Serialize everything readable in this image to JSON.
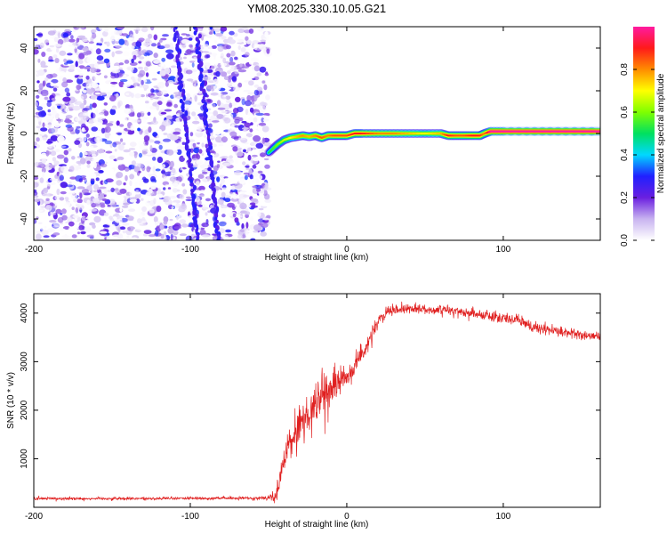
{
  "title": "YM08.2025.330.10.05.G21",
  "chart_data": [
    {
      "type": "heatmap",
      "title": "",
      "xlabel": "Height of straight line (km)",
      "ylabel": "Frequency (Hz)",
      "xlim": [
        -200,
        162
      ],
      "ylim": [
        -50,
        50
      ],
      "xticks": [
        -200,
        -100,
        0,
        100
      ],
      "xtick_labels": [
        "-200",
        "-100",
        "0",
        "100"
      ],
      "yticks": [
        -40,
        -20,
        0,
        20,
        40
      ],
      "ytick_labels": [
        "-40",
        "-20",
        "0",
        "20",
        "40"
      ],
      "noise_region": {
        "x_from": -200,
        "x_to": -50,
        "description_value": "low amplitude 0.0-0.3"
      },
      "noise_streaks": [
        {
          "x_start": -96,
          "x_end": -82,
          "y_start": 50,
          "y_end": -50
        },
        {
          "x_start": -110,
          "x_end": -95,
          "y_start": 50,
          "y_end": -50
        }
      ],
      "ridge": {
        "x": [
          -50,
          -47,
          -44,
          -40,
          -36,
          -32,
          -28,
          -24,
          -20,
          -16,
          -12,
          -8,
          -4,
          0,
          5,
          10,
          20,
          30,
          40,
          50,
          60,
          65,
          70,
          75,
          80,
          85,
          88,
          92,
          100,
          120,
          140,
          162
        ],
        "y": [
          -9,
          -7,
          -5,
          -3,
          -2,
          -1.5,
          -1,
          -1.5,
          -1,
          -2,
          -1,
          -1,
          -1,
          -1,
          0,
          0,
          0,
          0,
          0,
          0,
          0,
          -1,
          -1,
          -1,
          -1,
          -1,
          0,
          1,
          1,
          1,
          1,
          1
        ],
        "amplitude": [
          0.5,
          0.55,
          0.6,
          0.65,
          0.7,
          0.75,
          0.8,
          0.75,
          0.8,
          0.85,
          0.8,
          0.85,
          0.85,
          0.85,
          0.9,
          0.9,
          0.8,
          0.8,
          0.75,
          0.7,
          0.75,
          0.9,
          0.85,
          0.85,
          0.9,
          0.9,
          0.8,
          1.0,
          1.0,
          1.0,
          1.0,
          1.0
        ]
      },
      "colorbar": {
        "label": "Normalized spectral amplitude",
        "range": [
          0,
          1
        ],
        "ticks": [
          0.0,
          0.2,
          0.4,
          0.6,
          0.8
        ],
        "tick_labels": [
          "0.0",
          "0.2",
          "0.4",
          "0.6",
          "0.8"
        ],
        "colors": [
          "#ffffff",
          "#c8b3f0",
          "#6a1fe0",
          "#2020ff",
          "#00d8ff",
          "#00e060",
          "#7fff00",
          "#ffff00",
          "#ff8c00",
          "#ff1a1a",
          "#ff1aa0"
        ]
      }
    },
    {
      "type": "line",
      "title": "",
      "xlabel": "Height of straight line (km)",
      "ylabel": "SNR (10 * v/v)",
      "xlim": [
        -200,
        162
      ],
      "ylim": [
        0,
        4400
      ],
      "xticks": [
        -200,
        -100,
        0,
        100
      ],
      "xtick_labels": [
        "-200",
        "-100",
        "0",
        "100"
      ],
      "yticks": [
        1000,
        2000,
        3000,
        4000
      ],
      "ytick_labels": [
        "1000",
        "2000",
        "3000",
        "4000"
      ],
      "series": [
        {
          "name": "SNR",
          "color": "#e02020",
          "x": [
            -200,
            -180,
            -160,
            -140,
            -120,
            -100,
            -80,
            -60,
            -50,
            -45,
            -40,
            -35,
            -30,
            -25,
            -20,
            -15,
            -10,
            -5,
            0,
            5,
            10,
            15,
            20,
            25,
            30,
            35,
            40,
            50,
            60,
            70,
            80,
            90,
            100,
            110,
            120,
            130,
            140,
            150,
            162
          ],
          "values": [
            180,
            180,
            180,
            180,
            180,
            185,
            185,
            190,
            200,
            250,
            1000,
            1400,
            1700,
            1900,
            2100,
            2300,
            2450,
            2600,
            2700,
            2900,
            3200,
            3500,
            3800,
            4000,
            4050,
            4080,
            4100,
            4080,
            4060,
            4050,
            4000,
            3950,
            3900,
            3850,
            3700,
            3650,
            3600,
            3550,
            3500
          ],
          "noise_amplitude": [
            60,
            60,
            60,
            60,
            60,
            60,
            60,
            60,
            80,
            400,
            500,
            700,
            800,
            900,
            800,
            800,
            700,
            600,
            500,
            450,
            400,
            350,
            300,
            250,
            200,
            180,
            180,
            180,
            180,
            180,
            200,
            220,
            220,
            220,
            200,
            200,
            200,
            200,
            200
          ]
        }
      ]
    }
  ]
}
